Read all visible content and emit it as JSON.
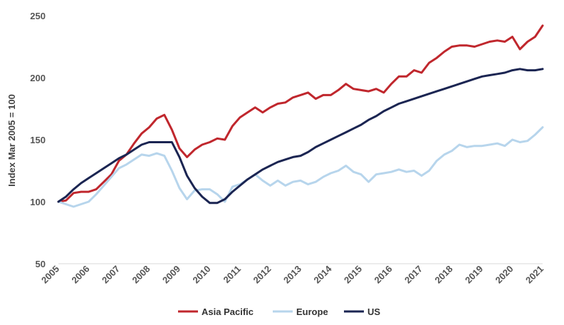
{
  "chart_data": {
    "type": "line",
    "ylabel": "Index Mar 2005 = 100",
    "ylim": [
      50,
      250
    ],
    "yticks": [
      "50",
      "100",
      "150",
      "200",
      "250"
    ],
    "xlim": [
      2005,
      2021
    ],
    "xticks": [
      "2005",
      "2006",
      "2007",
      "2008",
      "2009",
      "2010",
      "2011",
      "2012",
      "2013",
      "2014",
      "2015",
      "2016",
      "2017",
      "2018",
      "2019",
      "2020",
      "2021"
    ],
    "grid": false,
    "legend": "bottom",
    "x": [
      2005.0,
      2005.25,
      2005.5,
      2005.75,
      2006.0,
      2006.25,
      2006.5,
      2006.75,
      2007.0,
      2007.25,
      2007.5,
      2007.75,
      2008.0,
      2008.25,
      2008.5,
      2008.75,
      2009.0,
      2009.25,
      2009.5,
      2009.75,
      2010.0,
      2010.25,
      2010.5,
      2010.75,
      2011.0,
      2011.25,
      2011.5,
      2011.75,
      2012.0,
      2012.25,
      2012.5,
      2012.75,
      2013.0,
      2013.25,
      2013.5,
      2013.75,
      2014.0,
      2014.25,
      2014.5,
      2014.75,
      2015.0,
      2015.25,
      2015.5,
      2015.75,
      2016.0,
      2016.25,
      2016.5,
      2016.75,
      2017.0,
      2017.25,
      2017.5,
      2017.75,
      2018.0,
      2018.25,
      2018.5,
      2018.75,
      2019.0,
      2019.25,
      2019.5,
      2019.75,
      2020.0,
      2020.25,
      2020.5,
      2020.75,
      2021.0
    ],
    "series": [
      {
        "name": "Asia Pacific",
        "color": "#c0272d",
        "values": [
          100,
          101,
          107,
          108,
          108,
          110,
          116,
          122,
          133,
          138,
          147,
          155,
          160,
          167,
          170,
          158,
          143,
          136,
          142,
          146,
          148,
          151,
          150,
          161,
          168,
          172,
          176,
          172,
          176,
          179,
          180,
          184,
          186,
          188,
          183,
          186,
          186,
          190,
          195,
          191,
          190,
          189,
          191,
          188,
          195,
          201,
          201,
          206,
          204,
          212,
          216,
          221,
          225,
          226,
          226,
          225,
          227,
          229,
          230,
          229,
          233,
          223,
          229,
          233,
          242
        ]
      },
      {
        "name": "Europe",
        "color": "#b7d5ec",
        "values": [
          100,
          98,
          96,
          98,
          100,
          106,
          113,
          120,
          127,
          130,
          134,
          138,
          137,
          139,
          137,
          125,
          111,
          102,
          109,
          110,
          110,
          106,
          100,
          112,
          114,
          118,
          122,
          117,
          113,
          117,
          113,
          116,
          117,
          114,
          116,
          120,
          123,
          125,
          129,
          124,
          122,
          116,
          122,
          123,
          124,
          126,
          124,
          125,
          121,
          125,
          133,
          138,
          141,
          146,
          144,
          145,
          145,
          146,
          147,
          145,
          150,
          148,
          149,
          154,
          160
        ]
      },
      {
        "name": "US",
        "color": "#1b2552",
        "values": [
          100,
          104,
          110,
          115,
          119,
          123,
          127,
          131,
          135,
          138,
          142,
          146,
          148,
          148,
          148,
          148,
          136,
          121,
          111,
          104,
          99,
          99,
          102,
          108,
          113,
          118,
          122,
          126,
          129,
          132,
          134,
          136,
          137,
          140,
          144,
          147,
          150,
          153,
          156,
          159,
          162,
          166,
          169,
          173,
          176,
          179,
          181,
          183,
          185,
          187,
          189,
          191,
          193,
          195,
          197,
          199,
          201,
          202,
          203,
          204,
          206,
          207,
          206,
          206,
          207
        ]
      }
    ]
  }
}
